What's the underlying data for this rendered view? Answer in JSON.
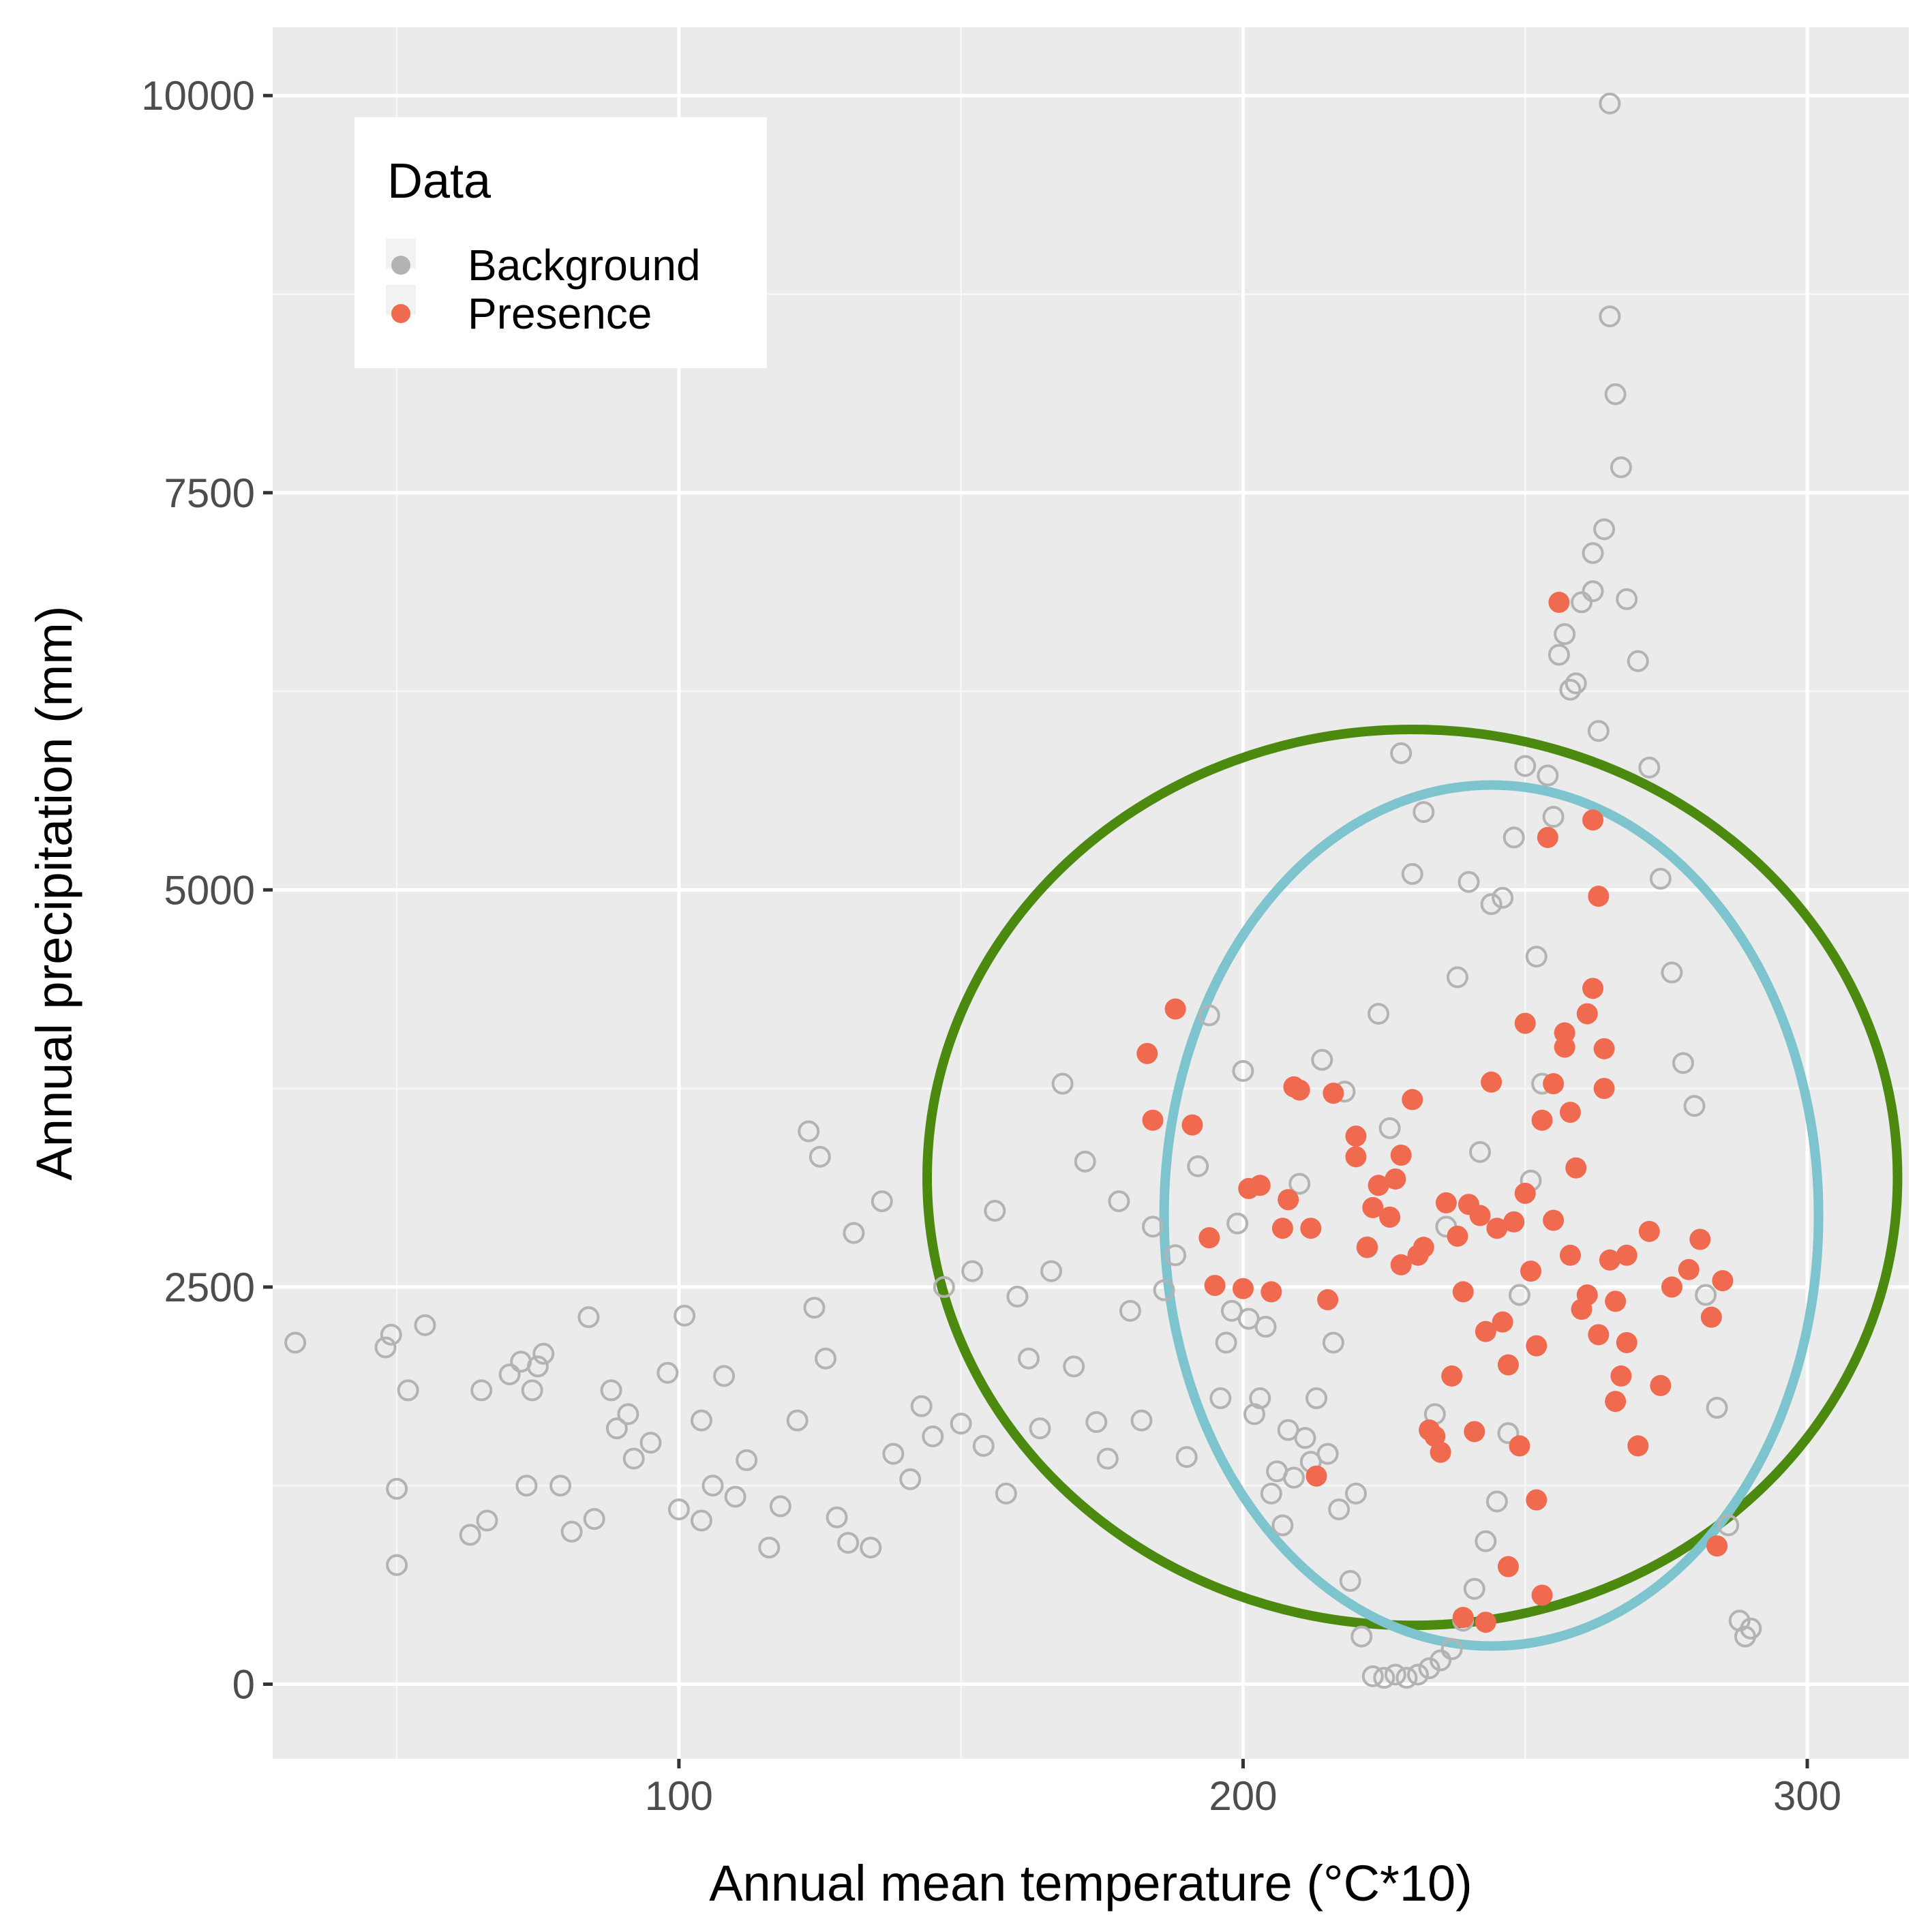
{
  "chart_data": {
    "type": "scatter",
    "xlabel": "Annual mean temperature (°C*10)",
    "ylabel": "Annual precipitation (mm)",
    "xlim": [
      28,
      318
    ],
    "ylim": [
      -470,
      10430
    ],
    "xticks": [
      100,
      200,
      300
    ],
    "yticks": [
      0,
      2500,
      5000,
      7500,
      10000
    ],
    "xtick_labels": [
      "100",
      "200",
      "300"
    ],
    "ytick_labels": [
      "0",
      "2500",
      "5000",
      "7500",
      "10000"
    ],
    "grid": true,
    "legend": {
      "title": "Data",
      "placement": "top-left",
      "entries": [
        {
          "label": "Background",
          "color": "#b3b3b3"
        },
        {
          "label": "Presence",
          "color": "#ef6a4f"
        }
      ]
    },
    "series": [
      {
        "name": "Background",
        "marker": "open-circle",
        "color": "#b3b3b3",
        "points": [
          [
            32,
            2150
          ],
          [
            48,
            2120
          ],
          [
            49,
            2200
          ],
          [
            52,
            1850
          ],
          [
            50,
            1230
          ],
          [
            50,
            750
          ],
          [
            55,
            2260
          ],
          [
            65,
            1850
          ],
          [
            63,
            940
          ],
          [
            66,
            1030
          ],
          [
            70,
            1950
          ],
          [
            72,
            2030
          ],
          [
            74,
            1850
          ],
          [
            73,
            1250
          ],
          [
            75,
            2000
          ],
          [
            76,
            2080
          ],
          [
            79,
            1250
          ],
          [
            81,
            960
          ],
          [
            84,
            2310
          ],
          [
            88,
            1850
          ],
          [
            85,
            1040
          ],
          [
            89,
            1610
          ],
          [
            91,
            1700
          ],
          [
            92,
            1420
          ],
          [
            95,
            1520
          ],
          [
            98,
            1960
          ],
          [
            100,
            1100
          ],
          [
            101,
            2320
          ],
          [
            104,
            1030
          ],
          [
            104,
            1660
          ],
          [
            106,
            1250
          ],
          [
            108,
            1940
          ],
          [
            110,
            1180
          ],
          [
            112,
            1410
          ],
          [
            116,
            860
          ],
          [
            118,
            1120
          ],
          [
            121,
            1660
          ],
          [
            124,
            2370
          ],
          [
            126,
            2050
          ],
          [
            128,
            1050
          ],
          [
            123,
            3480
          ],
          [
            125,
            3320
          ],
          [
            130,
            890
          ],
          [
            134,
            860
          ],
          [
            131,
            2840
          ],
          [
            136,
            3040
          ],
          [
            138,
            1450
          ],
          [
            141,
            1290
          ],
          [
            143,
            1750
          ],
          [
            145,
            1560
          ],
          [
            147,
            2500
          ],
          [
            150,
            1640
          ],
          [
            152,
            2600
          ],
          [
            154,
            1500
          ],
          [
            156,
            2980
          ],
          [
            158,
            1200
          ],
          [
            160,
            2440
          ],
          [
            162,
            2050
          ],
          [
            164,
            1610
          ],
          [
            166,
            2600
          ],
          [
            168,
            3780
          ],
          [
            170,
            2000
          ],
          [
            172,
            3290
          ],
          [
            174,
            1650
          ],
          [
            176,
            1420
          ],
          [
            178,
            3040
          ],
          [
            180,
            2350
          ],
          [
            182,
            1660
          ],
          [
            184,
            2880
          ],
          [
            186,
            2480
          ],
          [
            188,
            2700
          ],
          [
            190,
            1430
          ],
          [
            192,
            3260
          ],
          [
            194,
            4210
          ],
          [
            196,
            1800
          ],
          [
            198,
            2350
          ],
          [
            200,
            3860
          ],
          [
            202,
            1700
          ],
          [
            204,
            2250
          ],
          [
            206,
            1340
          ],
          [
            208,
            1600
          ],
          [
            210,
            3150
          ],
          [
            212,
            1400
          ],
          [
            214,
            3930
          ],
          [
            216,
            2150
          ],
          [
            218,
            3730
          ],
          [
            220,
            1200
          ],
          [
            222,
            2750
          ],
          [
            224,
            4220
          ],
          [
            226,
            3500
          ],
          [
            228,
            5860
          ],
          [
            230,
            5100
          ],
          [
            232,
            5490
          ],
          [
            234,
            1700
          ],
          [
            236,
            2880
          ],
          [
            238,
            4450
          ],
          [
            240,
            5050
          ],
          [
            242,
            3350
          ],
          [
            244,
            4910
          ],
          [
            246,
            4950
          ],
          [
            248,
            5330
          ],
          [
            250,
            5780
          ],
          [
            252,
            4580
          ],
          [
            254,
            5720
          ],
          [
            256,
            6480
          ],
          [
            258,
            6260
          ],
          [
            260,
            6810
          ],
          [
            262,
            7120
          ],
          [
            264,
            7270
          ],
          [
            265,
            8610
          ],
          [
            266,
            8120
          ],
          [
            267,
            7660
          ],
          [
            268,
            6830
          ],
          [
            270,
            6440
          ],
          [
            272,
            5770
          ],
          [
            274,
            5070
          ],
          [
            276,
            4480
          ],
          [
            278,
            3910
          ],
          [
            280,
            3640
          ],
          [
            282,
            2450
          ],
          [
            284,
            1740
          ],
          [
            286,
            1000
          ],
          [
            288,
            400
          ],
          [
            289,
            300
          ],
          [
            290,
            350
          ],
          [
            265,
            9950
          ],
          [
            263,
            6000
          ],
          [
            262,
            6880
          ],
          [
            257,
            6610
          ],
          [
            259,
            6300
          ],
          [
            255,
            5460
          ],
          [
            253,
            3780
          ],
          [
            251,
            3170
          ],
          [
            249,
            2450
          ],
          [
            247,
            1580
          ],
          [
            245,
            1150
          ],
          [
            243,
            900
          ],
          [
            241,
            600
          ],
          [
            239,
            400
          ],
          [
            237,
            220
          ],
          [
            235,
            150
          ],
          [
            233,
            100
          ],
          [
            231,
            60
          ],
          [
            229,
            40
          ],
          [
            227,
            60
          ],
          [
            225,
            40
          ],
          [
            223,
            50
          ],
          [
            221,
            300
          ],
          [
            219,
            650
          ],
          [
            217,
            1100
          ],
          [
            215,
            1450
          ],
          [
            213,
            1800
          ],
          [
            211,
            1550
          ],
          [
            209,
            1300
          ],
          [
            207,
            1000
          ],
          [
            205,
            1200
          ],
          [
            203,
            1800
          ],
          [
            201,
            2300
          ],
          [
            199,
            2900
          ],
          [
            197,
            2150
          ]
        ]
      },
      {
        "name": "Presence",
        "marker": "filled-circle",
        "color": "#ef6a4f",
        "points": [
          [
            183,
            3970
          ],
          [
            184,
            3550
          ],
          [
            188,
            4250
          ],
          [
            191,
            3520
          ],
          [
            194,
            2810
          ],
          [
            195,
            2510
          ],
          [
            200,
            2490
          ],
          [
            201,
            3120
          ],
          [
            203,
            3140
          ],
          [
            205,
            2470
          ],
          [
            207,
            2870
          ],
          [
            208,
            3050
          ],
          [
            209,
            3760
          ],
          [
            210,
            3740
          ],
          [
            212,
            2870
          ],
          [
            213,
            1310
          ],
          [
            215,
            2420
          ],
          [
            216,
            3720
          ],
          [
            220,
            3450
          ],
          [
            220,
            3320
          ],
          [
            222,
            2750
          ],
          [
            223,
            3000
          ],
          [
            224,
            3140
          ],
          [
            226,
            2940
          ],
          [
            227,
            3180
          ],
          [
            228,
            3330
          ],
          [
            228,
            2640
          ],
          [
            230,
            3680
          ],
          [
            231,
            2700
          ],
          [
            232,
            2750
          ],
          [
            233,
            1600
          ],
          [
            234,
            1560
          ],
          [
            235,
            1460
          ],
          [
            236,
            3030
          ],
          [
            237,
            1940
          ],
          [
            238,
            2820
          ],
          [
            239,
            2470
          ],
          [
            240,
            3020
          ],
          [
            241,
            1590
          ],
          [
            242,
            2950
          ],
          [
            243,
            2220
          ],
          [
            244,
            3790
          ],
          [
            245,
            2870
          ],
          [
            246,
            2280
          ],
          [
            247,
            2010
          ],
          [
            248,
            2910
          ],
          [
            249,
            1500
          ],
          [
            250,
            4160
          ],
          [
            251,
            2600
          ],
          [
            252,
            2130
          ],
          [
            253,
            3550
          ],
          [
            254,
            5330
          ],
          [
            255,
            3780
          ],
          [
            256,
            6810
          ],
          [
            257,
            4100
          ],
          [
            258,
            2700
          ],
          [
            259,
            3250
          ],
          [
            260,
            2360
          ],
          [
            261,
            4220
          ],
          [
            262,
            5440
          ],
          [
            263,
            4960
          ],
          [
            264,
            3750
          ],
          [
            265,
            2670
          ],
          [
            266,
            1780
          ],
          [
            267,
            1940
          ],
          [
            268,
            2150
          ],
          [
            270,
            1500
          ],
          [
            272,
            2850
          ],
          [
            274,
            1880
          ],
          [
            276,
            2500
          ],
          [
            279,
            2610
          ],
          [
            281,
            2800
          ],
          [
            283,
            2310
          ],
          [
            284,
            870
          ],
          [
            285,
            2540
          ],
          [
            252,
            1160
          ],
          [
            253,
            560
          ],
          [
            247,
            740
          ],
          [
            239,
            420
          ],
          [
            243,
            390
          ],
          [
            250,
            3090
          ],
          [
            255,
            2920
          ],
          [
            257,
            4010
          ],
          [
            258,
            3600
          ],
          [
            261,
            2450
          ],
          [
            262,
            4380
          ],
          [
            263,
            2200
          ],
          [
            264,
            4000
          ],
          [
            266,
            2410
          ],
          [
            268,
            2700
          ]
        ]
      }
    ],
    "ellipses": [
      {
        "color": "#4b8a0e",
        "cx": 230,
        "cy": 3190,
        "rx": 86,
        "ry": 2820
      },
      {
        "color": "#7ec4ce",
        "cx": 244,
        "cy": 2950,
        "rx": 58,
        "ry": 2710
      }
    ]
  }
}
